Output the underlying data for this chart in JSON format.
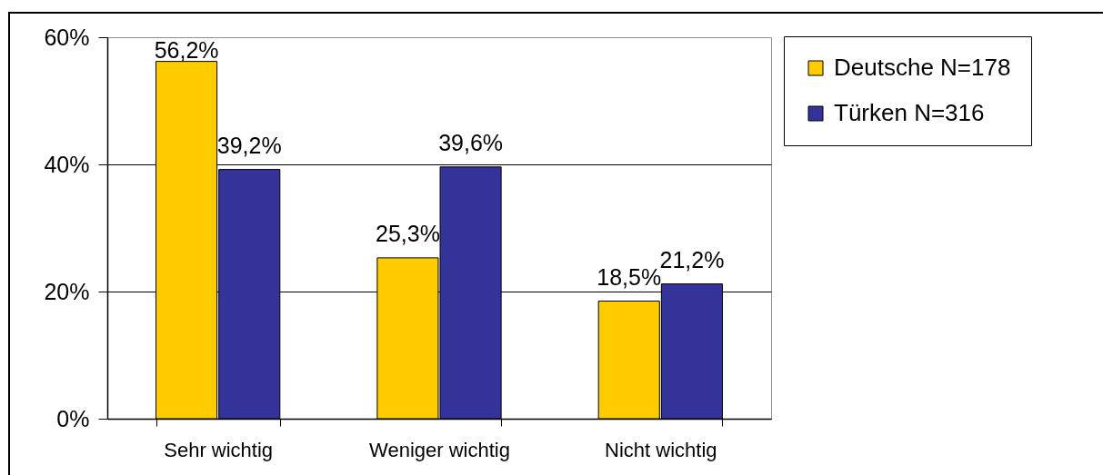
{
  "chart_data": {
    "type": "bar",
    "categories": [
      "Sehr wichtig",
      "Weniger wichtig",
      "Nicht wichtig"
    ],
    "series": [
      {
        "name": "Deutsche N=178",
        "color": "#ffcc00",
        "values": [
          56.2,
          25.3,
          18.5
        ],
        "value_labels": [
          "56,2%",
          "25,3%",
          "18,5%"
        ]
      },
      {
        "name": "Türken N=316",
        "color": "#333399",
        "values": [
          39.2,
          39.6,
          21.2
        ],
        "value_labels": [
          "39,2%",
          "39,6%",
          "21,2%"
        ]
      }
    ],
    "ylim": [
      0,
      60
    ],
    "yticks": [
      {
        "value": 0,
        "label": "0%"
      },
      {
        "value": 20,
        "label": "20%"
      },
      {
        "value": 40,
        "label": "40%"
      },
      {
        "value": 60,
        "label": "60%"
      }
    ],
    "grid": "y",
    "legend": "top right"
  }
}
